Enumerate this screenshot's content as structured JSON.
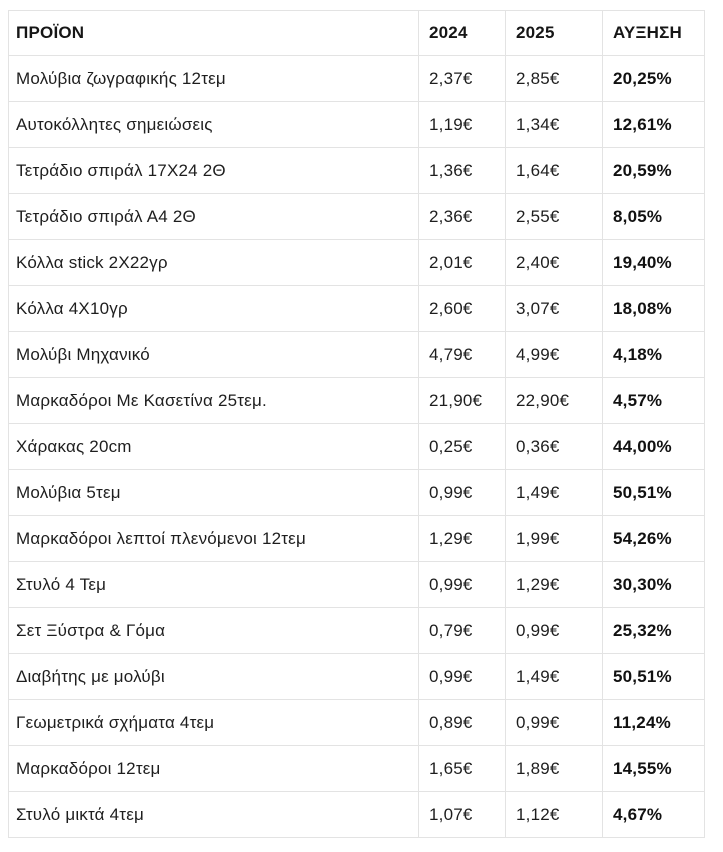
{
  "chart_data": {
    "type": "table",
    "columns": [
      "ΠΡΟΪΟΝ",
      "2024",
      "2025",
      "ΑΥΞΗΣΗ"
    ],
    "rows": [
      [
        "Μολύβια ζωγραφικής 12τεμ",
        "2,37€",
        "2,85€",
        "20,25%"
      ],
      [
        "Αυτοκόλλητες σημειώσεις",
        "1,19€",
        "1,34€",
        "12,61%"
      ],
      [
        "Τετράδιο σπιράλ 17Χ24 2Θ",
        "1,36€",
        "1,64€",
        "20,59%"
      ],
      [
        "Τετράδιο σπιράλ Α4 2Θ",
        "2,36€",
        "2,55€",
        "8,05%"
      ],
      [
        "Κόλλα stick 2Χ22γρ",
        "2,01€",
        "2,40€",
        "19,40%"
      ],
      [
        "Κόλλα 4Χ10γρ",
        "2,60€",
        "3,07€",
        "18,08%"
      ],
      [
        "Μολύβι Μηχανικό",
        "4,79€",
        "4,99€",
        "4,18%"
      ],
      [
        "Μαρκαδόροι Με Κασετίνα 25τεμ.",
        "21,90€",
        "22,90€",
        "4,57%"
      ],
      [
        "Χάρακας 20cm",
        "0,25€",
        "0,36€",
        "44,00%"
      ],
      [
        "Μολύβια 5τεμ",
        "0,99€",
        "1,49€",
        "50,51%"
      ],
      [
        "Μαρκαδόροι λεπτοί πλενόμενοι 12τεμ",
        "1,29€",
        "1,99€",
        "54,26%"
      ],
      [
        "Στυλό 4 Τεμ",
        "0,99€",
        "1,29€",
        "30,30%"
      ],
      [
        "Σετ Ξύστρα & Γόμα",
        "0,79€",
        "0,99€",
        "25,32%"
      ],
      [
        "Διαβήτης με μολύβι",
        "0,99€",
        "1,49€",
        "50,51%"
      ],
      [
        "Γεωμετρικά σχήματα  4τεμ",
        "0,89€",
        "0,99€",
        "11,24%"
      ],
      [
        "Μαρκαδόροι 12τεμ",
        "1,65€",
        "1,89€",
        "14,55%"
      ],
      [
        "Στυλό μικτά 4τεμ",
        "1,07€",
        "1,12€",
        "4,67%"
      ]
    ],
    "title": "",
    "legend": [],
    "notes": "Bold emphasis on header row and ΑΥΞΗΣΗ (increase) column; last row clipped by image bottom edge"
  },
  "colors": {
    "background": "#ffffff",
    "text": "#1e1e1e",
    "bold_text": "#111111",
    "border": "#e3e3e3"
  },
  "layout_meta": {
    "column_keys": [
      "product",
      "price-2024",
      "price-2025",
      "increase"
    ]
  }
}
